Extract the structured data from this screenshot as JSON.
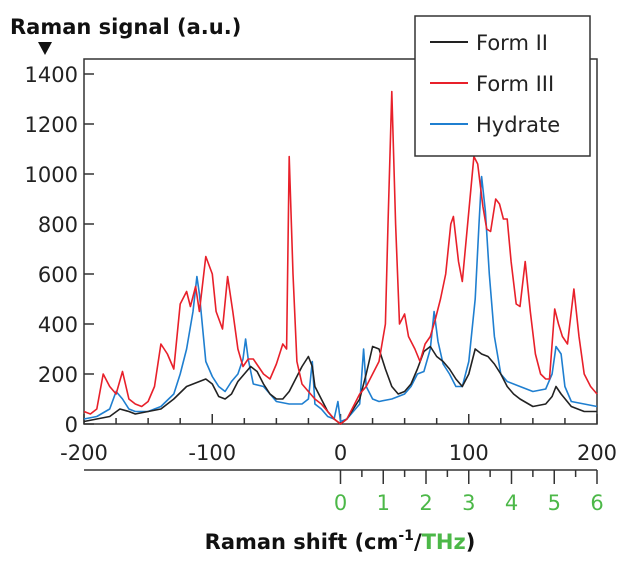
{
  "chart_data": {
    "type": "line",
    "ylabel": "Raman signal (a.u.)",
    "xlabel_main": "Raman shift (cm",
    "xlabel_sup": "-1",
    "xlabel_sep": "/",
    "xlabel_thz": "THz",
    "xlabel_close": ")",
    "xlim": [
      -200,
      200
    ],
    "ylim": [
      0,
      1400
    ],
    "xticks": [
      "-200",
      "-100",
      "0",
      "100",
      "200"
    ],
    "yticks": [
      "0",
      "200",
      "400",
      "600",
      "800",
      "1000",
      "1200",
      "1400"
    ],
    "secondary_x": {
      "unit": "THz",
      "range": [
        0,
        6
      ],
      "ticks": [
        "0",
        "1",
        "2",
        "3",
        "4",
        "5",
        "6"
      ],
      "color": "#4cb848"
    },
    "grid": false,
    "legend_position": "top-right",
    "series": [
      {
        "name": "Form II",
        "color": "#222222",
        "x": [
          -200,
          -190,
          -180,
          -172,
          -165,
          -160,
          -150,
          -140,
          -130,
          -120,
          -110,
          -105,
          -100,
          -95,
          -90,
          -85,
          -80,
          -75,
          -70,
          -65,
          -60,
          -55,
          -50,
          -45,
          -40,
          -35,
          -30,
          -25,
          -22,
          -20,
          -15,
          -10,
          -5,
          0,
          5,
          10,
          15,
          20,
          25,
          30,
          35,
          40,
          45,
          50,
          55,
          60,
          65,
          70,
          75,
          80,
          85,
          90,
          95,
          100,
          105,
          110,
          115,
          120,
          125,
          130,
          135,
          140,
          150,
          160,
          165,
          168,
          172,
          180,
          190,
          200
        ],
        "y": [
          10,
          20,
          30,
          60,
          50,
          40,
          50,
          60,
          100,
          150,
          170,
          180,
          160,
          110,
          100,
          120,
          170,
          200,
          230,
          210,
          160,
          120,
          100,
          100,
          130,
          180,
          230,
          270,
          230,
          150,
          100,
          50,
          20,
          0,
          20,
          60,
          100,
          200,
          310,
          300,
          220,
          150,
          120,
          130,
          160,
          220,
          290,
          310,
          270,
          250,
          220,
          180,
          150,
          200,
          300,
          280,
          270,
          240,
          200,
          150,
          120,
          100,
          70,
          80,
          110,
          150,
          120,
          70,
          50,
          50
        ]
      },
      {
        "name": "Form III",
        "color": "#e8202a",
        "x": [
          -200,
          -195,
          -190,
          -185,
          -180,
          -175,
          -170,
          -165,
          -160,
          -155,
          -150,
          -145,
          -140,
          -135,
          -130,
          -125,
          -120,
          -117,
          -113,
          -110,
          -105,
          -100,
          -97,
          -92,
          -88,
          -84,
          -80,
          -76,
          -72,
          -68,
          -64,
          -60,
          -55,
          -50,
          -45,
          -42,
          -40,
          -37,
          -34,
          -30,
          -25,
          -20,
          -15,
          -10,
          -5,
          0,
          5,
          10,
          15,
          20,
          25,
          30,
          35,
          37,
          40,
          43,
          46,
          50,
          53,
          58,
          62,
          66,
          70,
          74,
          78,
          82,
          86,
          88,
          92,
          95,
          100,
          104,
          107,
          111,
          114,
          117,
          121,
          124,
          127,
          130,
          133,
          137,
          140,
          144,
          148,
          152,
          156,
          160,
          163,
          167,
          170,
          173,
          177,
          182,
          186,
          190,
          195,
          200
        ],
        "y": [
          50,
          40,
          60,
          200,
          150,
          120,
          210,
          100,
          80,
          70,
          90,
          150,
          320,
          280,
          220,
          480,
          530,
          470,
          550,
          450,
          670,
          600,
          450,
          380,
          590,
          450,
          300,
          230,
          260,
          260,
          230,
          200,
          180,
          240,
          320,
          300,
          1070,
          600,
          250,
          160,
          130,
          100,
          80,
          50,
          20,
          0,
          20,
          70,
          120,
          150,
          200,
          250,
          400,
          800,
          1330,
          800,
          400,
          440,
          350,
          300,
          250,
          320,
          350,
          420,
          500,
          600,
          800,
          830,
          650,
          570,
          850,
          1070,
          1040,
          870,
          780,
          770,
          900,
          880,
          820,
          820,
          650,
          480,
          470,
          650,
          450,
          280,
          200,
          180,
          180,
          460,
          400,
          350,
          320,
          540,
          350,
          200,
          150,
          120
        ]
      },
      {
        "name": "Hydrate",
        "color": "#1f7fd0",
        "x": [
          -200,
          -190,
          -180,
          -175,
          -170,
          -165,
          -160,
          -150,
          -140,
          -130,
          -125,
          -120,
          -115,
          -112,
          -110,
          -105,
          -100,
          -95,
          -90,
          -85,
          -80,
          -76,
          -74,
          -72,
          -68,
          -60,
          -55,
          -50,
          -40,
          -30,
          -25,
          -22,
          -20,
          -15,
          -10,
          -5,
          -2,
          0,
          5,
          10,
          15,
          18,
          20,
          25,
          30,
          40,
          50,
          55,
          60,
          65,
          70,
          73,
          76,
          80,
          85,
          90,
          95,
          100,
          105,
          108,
          110,
          113,
          116,
          120,
          125,
          130,
          140,
          150,
          160,
          165,
          168,
          172,
          175,
          180,
          190,
          200
        ],
        "y": [
          20,
          30,
          60,
          130,
          100,
          60,
          50,
          50,
          70,
          120,
          200,
          300,
          450,
          590,
          520,
          250,
          190,
          150,
          130,
          170,
          200,
          260,
          340,
          260,
          160,
          150,
          120,
          90,
          80,
          80,
          100,
          250,
          80,
          60,
          30,
          20,
          90,
          10,
          20,
          50,
          80,
          300,
          150,
          100,
          90,
          100,
          120,
          150,
          200,
          210,
          300,
          450,
          330,
          240,
          200,
          150,
          150,
          250,
          500,
          800,
          990,
          850,
          600,
          350,
          200,
          170,
          150,
          130,
          140,
          200,
          310,
          280,
          150,
          90,
          80,
          70
        ]
      }
    ]
  }
}
